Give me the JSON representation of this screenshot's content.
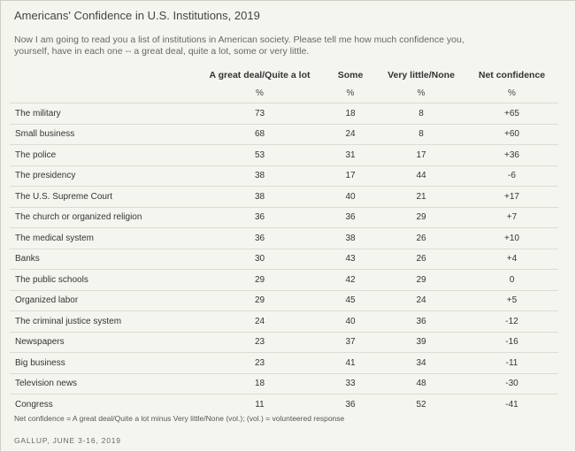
{
  "chart_data": {
    "type": "table",
    "title": "Americans' Confidence in U.S. Institutions, 2019",
    "subtitle": "Now I am going to read you a list of institutions in American society. Please tell me how much confidence you, yourself, have in each one -- a great deal, quite a lot, some or very little.",
    "columns": [
      "",
      "A great deal/Quite a lot",
      "Some",
      "Very little/None",
      "Net confidence"
    ],
    "units": [
      "",
      "%",
      "%",
      "%",
      "%"
    ],
    "rows": [
      [
        "The military",
        "73",
        "18",
        "8",
        "+65"
      ],
      [
        "Small business",
        "68",
        "24",
        "8",
        "+60"
      ],
      [
        "The police",
        "53",
        "31",
        "17",
        "+36"
      ],
      [
        "The presidency",
        "38",
        "17",
        "44",
        "-6"
      ],
      [
        "The U.S. Supreme Court",
        "38",
        "40",
        "21",
        "+17"
      ],
      [
        "The church or organized religion",
        "36",
        "36",
        "29",
        "+7"
      ],
      [
        "The medical system",
        "36",
        "38",
        "26",
        "+10"
      ],
      [
        "Banks",
        "30",
        "43",
        "26",
        "+4"
      ],
      [
        "The public schools",
        "29",
        "42",
        "29",
        "0"
      ],
      [
        "Organized labor",
        "29",
        "45",
        "24",
        "+5"
      ],
      [
        "The criminal justice system",
        "24",
        "40",
        "36",
        "-12"
      ],
      [
        "Newspapers",
        "23",
        "37",
        "39",
        "-16"
      ],
      [
        "Big business",
        "23",
        "41",
        "34",
        "-11"
      ],
      [
        "Television news",
        "18",
        "33",
        "48",
        "-30"
      ],
      [
        "Congress",
        "11",
        "36",
        "52",
        "-41"
      ]
    ],
    "note": "Net confidence = A great deal/Quite a lot minus Very little/None (vol.); (vol.) = volunteered response",
    "source": "GALLUP, JUNE 3-16, 2019"
  }
}
